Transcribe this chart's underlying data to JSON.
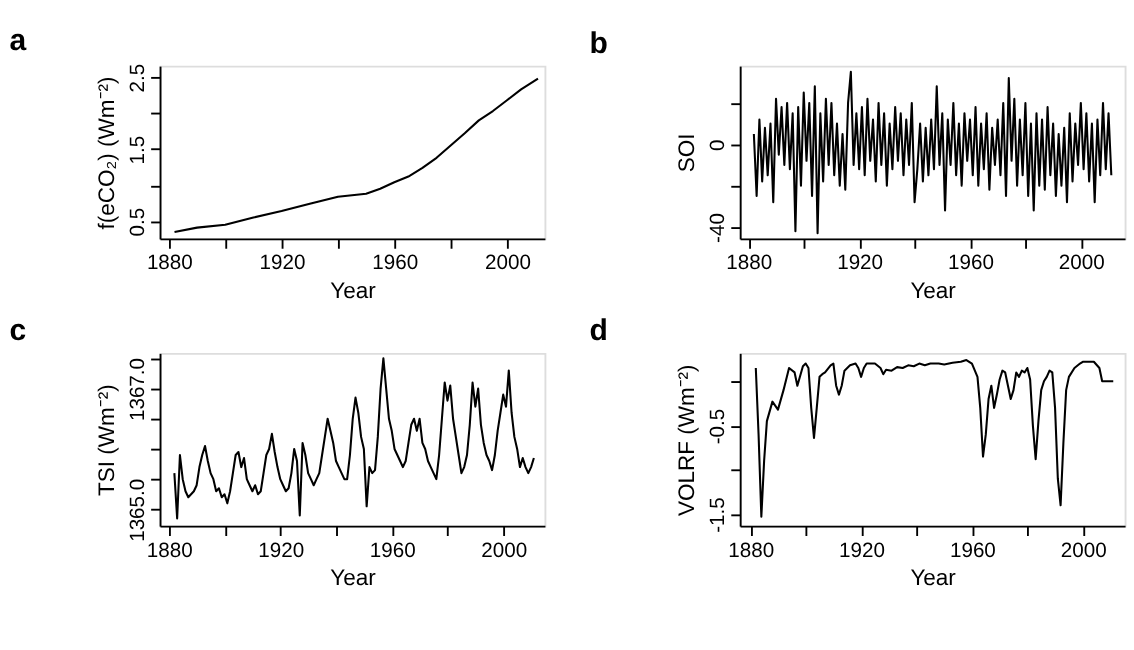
{
  "chart_data": [
    {
      "type": "line",
      "title": "a",
      "xlabel": "Year",
      "ylabel": "f(eCO₂) (Wm⁻²)",
      "xlim": [
        1876.7,
        2013.3
      ],
      "ylim": [
        0.26,
        2.66
      ],
      "xticks": [
        1880,
        {
          "value": 1900,
          "label": null
        },
        1920,
        {
          "value": 1940,
          "label": null
        },
        1960,
        {
          "value": 1980,
          "label": null
        },
        2000
      ],
      "yticks": [
        0.5,
        {
          "value": 1.0,
          "label": null
        },
        1.5,
        {
          "value": 2.0,
          "label": null
        },
        2.5
      ],
      "grid": false,
      "x": [
        1882,
        1890,
        1900,
        1910,
        1920,
        1930,
        1940,
        1950,
        1955,
        1960,
        1965,
        1970,
        1975,
        1980,
        1985,
        1990,
        1995,
        2000,
        2005,
        2011
      ],
      "series": [
        {
          "color": "#000000",
          "values": [
            0.35,
            0.41,
            0.45,
            0.55,
            0.64,
            0.74,
            0.84,
            0.88,
            0.95,
            1.04,
            1.12,
            1.24,
            1.38,
            1.55,
            1.72,
            1.9,
            2.03,
            2.18,
            2.33,
            2.48
          ]
        }
      ]
    },
    {
      "type": "line",
      "title": "b",
      "xlabel": "Year",
      "ylabel": "SOI",
      "xlim": [
        1876.9,
        2015.8
      ],
      "ylim": [
        -45.5,
        38
      ],
      "xticks": [
        1880,
        {
          "value": 1900,
          "label": null
        },
        1920,
        {
          "value": 1940,
          "label": null
        },
        1960,
        {
          "value": 1980,
          "label": null
        },
        2000
      ],
      "yticks": [
        -40,
        {
          "value": -20,
          "label": null
        },
        0,
        {
          "value": 20,
          "label": null
        }
      ],
      "grid": false,
      "x": [
        1882,
        1883,
        1884,
        1885,
        1886,
        1887,
        1888,
        1889,
        1890,
        1891,
        1892,
        1893,
        1894,
        1895,
        1896,
        1897,
        1898,
        1899,
        1900,
        1901,
        1902,
        1903,
        1904,
        1905,
        1906,
        1907,
        1908,
        1909,
        1910,
        1911,
        1912,
        1913,
        1914,
        1915,
        1916,
        1917,
        1918,
        1919,
        1920,
        1921,
        1922,
        1923,
        1924,
        1925,
        1926,
        1927,
        1928,
        1929,
        1930,
        1931,
        1932,
        1933,
        1934,
        1935,
        1936,
        1937,
        1938,
        1939,
        1940,
        1941,
        1942,
        1943,
        1944,
        1945,
        1946,
        1947,
        1948,
        1949,
        1950,
        1951,
        1952,
        1953,
        1954,
        1955,
        1956,
        1957,
        1958,
        1959,
        1960,
        1961,
        1962,
        1963,
        1964,
        1965,
        1966,
        1967,
        1968,
        1969,
        1970,
        1971,
        1972,
        1973,
        1974,
        1975,
        1976,
        1977,
        1978,
        1979,
        1980,
        1981,
        1982,
        1983,
        1984,
        1985,
        1986,
        1987,
        1988,
        1989,
        1990,
        1991,
        1992,
        1993,
        1994,
        1995,
        1996,
        1997,
        1998,
        1999,
        2000,
        2001,
        2002,
        2003,
        2004,
        2005,
        2006,
        2007,
        2008,
        2009,
        2010,
        2011
      ],
      "series": [
        {
          "color": "#000000",
          "values": [
            5,
            -25,
            12,
            -18,
            8,
            -15,
            10,
            -28,
            22,
            -5,
            18,
            -10,
            20,
            -12,
            15,
            -42,
            18,
            -20,
            25,
            -8,
            20,
            -25,
            28,
            -43,
            15,
            -18,
            22,
            -10,
            20,
            -15,
            10,
            -20,
            5,
            -22,
            20,
            35,
            -10,
            15,
            -12,
            18,
            -15,
            22,
            -8,
            12,
            -18,
            20,
            -10,
            15,
            -20,
            10,
            -12,
            18,
            -8,
            15,
            -15,
            12,
            -10,
            20,
            -28,
            -12,
            10,
            -18,
            8,
            -15,
            12,
            -12,
            28,
            -10,
            15,
            -32,
            12,
            -10,
            20,
            -15,
            10,
            -20,
            15,
            -8,
            12,
            -15,
            18,
            -20,
            10,
            -12,
            15,
            -22,
            8,
            -10,
            12,
            -15,
            20,
            -25,
            32,
            -8,
            22,
            -20,
            12,
            -15,
            20,
            -25,
            10,
            -32,
            15,
            -20,
            12,
            -22,
            18,
            -15,
            10,
            -25,
            5,
            -20,
            8,
            -28,
            15,
            -18,
            10,
            -10,
            20,
            -12,
            15,
            -18,
            10,
            -28,
            12,
            -15,
            20,
            -12,
            15,
            -15
          ]
        }
      ]
    },
    {
      "type": "line",
      "title": "c",
      "xlabel": "Year",
      "ylabel": "TSI (Wm⁻²)",
      "xlim": [
        1876.7,
        2014.8
      ],
      "ylim": [
        1364.73,
        1367.59
      ],
      "xticks": [
        1880,
        {
          "value": 1900,
          "label": null
        },
        1920,
        {
          "value": 1940,
          "label": null
        },
        1960,
        {
          "value": 1980,
          "label": null
        },
        2000
      ],
      "yticks": [
        {
          "value": 1365,
          "label": "1365.0"
        },
        {
          "value": 1365.5,
          "label": null
        },
        {
          "value": 1366,
          "label": null
        },
        {
          "value": 1366.5,
          "label": null
        },
        {
          "value": 1367,
          "label": "1367.0"
        },
        {
          "value": 1367.5,
          "label": null
        }
      ],
      "grid": false,
      "x": [
        1882,
        1883,
        1884,
        1885,
        1886,
        1887,
        1888,
        1889,
        1890,
        1891,
        1892,
        1893,
        1894,
        1895,
        1896,
        1897,
        1898,
        1899,
        1900,
        1901,
        1902,
        1903,
        1904,
        1905,
        1906,
        1907,
        1908,
        1909,
        1910,
        1911,
        1912,
        1913,
        1914,
        1915,
        1916,
        1917,
        1918,
        1919,
        1920,
        1921,
        1922,
        1923,
        1924,
        1925,
        1926,
        1927,
        1928,
        1929,
        1930,
        1931,
        1932,
        1933,
        1934,
        1935,
        1936,
        1937,
        1938,
        1939,
        1940,
        1941,
        1942,
        1943,
        1944,
        1945,
        1946,
        1947,
        1948,
        1949,
        1950,
        1951,
        1952,
        1953,
        1954,
        1955,
        1956,
        1957,
        1958,
        1959,
        1960,
        1961,
        1962,
        1963,
        1964,
        1965,
        1966,
        1967,
        1968,
        1969,
        1970,
        1971,
        1972,
        1973,
        1974,
        1975,
        1976,
        1977,
        1978,
        1979,
        1980,
        1981,
        1982,
        1983,
        1984,
        1985,
        1986,
        1987,
        1988,
        1989,
        1990,
        1991,
        1992,
        1993,
        1994,
        1995,
        1996,
        1997,
        1998,
        1999,
        2000,
        2001,
        2002,
        2003,
        2004,
        2005,
        2006,
        2007,
        2008,
        2009,
        2010,
        2011
      ],
      "series": [
        {
          "color": "#000000",
          "values": [
            1365.6,
            1364.85,
            1365.9,
            1365.5,
            1365.3,
            1365.2,
            1365.25,
            1365.3,
            1365.4,
            1365.7,
            1365.9,
            1366.05,
            1365.8,
            1365.6,
            1365.5,
            1365.3,
            1365.35,
            1365.2,
            1365.25,
            1365.1,
            1365.3,
            1365.6,
            1365.9,
            1365.95,
            1365.7,
            1365.85,
            1365.5,
            1365.4,
            1365.3,
            1365.4,
            1365.25,
            1365.3,
            1365.6,
            1365.9,
            1366.0,
            1366.25,
            1365.95,
            1365.7,
            1365.5,
            1365.4,
            1365.3,
            1365.35,
            1365.6,
            1366.0,
            1365.8,
            1364.9,
            1366.1,
            1365.9,
            1365.6,
            1365.5,
            1365.4,
            1365.5,
            1365.6,
            1365.9,
            1366.2,
            1366.5,
            1366.3,
            1366.1,
            1365.8,
            1365.7,
            1365.6,
            1365.5,
            1365.5,
            1365.9,
            1366.5,
            1366.85,
            1366.6,
            1366.2,
            1366.0,
            1365.05,
            1365.7,
            1365.6,
            1365.65,
            1366.2,
            1367.0,
            1367.5,
            1367.0,
            1366.5,
            1366.3,
            1366.0,
            1365.9,
            1365.8,
            1365.7,
            1365.8,
            1366.1,
            1366.4,
            1366.5,
            1366.3,
            1366.5,
            1366.1,
            1366.0,
            1365.8,
            1365.7,
            1365.6,
            1365.5,
            1365.9,
            1366.5,
            1367.1,
            1366.8,
            1367.05,
            1366.5,
            1366.2,
            1365.9,
            1365.6,
            1365.7,
            1365.9,
            1366.4,
            1367.1,
            1366.7,
            1367.0,
            1366.4,
            1366.1,
            1365.9,
            1365.8,
            1365.65,
            1365.9,
            1366.3,
            1366.6,
            1366.9,
            1366.7,
            1367.3,
            1366.6,
            1366.2,
            1366.0,
            1365.7,
            1365.85,
            1365.7,
            1365.6,
            1365.7,
            1365.85
          ]
        }
      ]
    },
    {
      "type": "line",
      "title": "d",
      "xlabel": "Year",
      "ylabel": "VOLRF (Wm⁻²)",
      "xlim": [
        1876.2,
        2015.1
      ],
      "ylim": [
        -1.63,
        0.32
      ],
      "xticks": [
        1880,
        {
          "value": 1900,
          "label": null
        },
        1920,
        {
          "value": 1940,
          "label": null
        },
        1960,
        {
          "value": 1980,
          "label": null
        },
        2000
      ],
      "yticks": [
        -1.5,
        {
          "value": -1.0,
          "label": null
        },
        -0.5,
        {
          "value": 0,
          "label": null
        }
      ],
      "grid": false,
      "x": [
        1882,
        1883,
        1884,
        1885,
        1886,
        1888,
        1890,
        1892,
        1894,
        1896,
        1897,
        1899,
        1900,
        1901,
        1902,
        1903,
        1904,
        1905,
        1906,
        1907,
        1909,
        1910,
        1911,
        1912,
        1913,
        1914,
        1916,
        1918,
        1919,
        1920,
        1921,
        1922,
        1925,
        1927,
        1928,
        1929,
        1931,
        1933,
        1935,
        1937,
        1939,
        1941,
        1943,
        1945,
        1948,
        1950,
        1953,
        1956,
        1958,
        1960,
        1962,
        1963,
        1964,
        1965,
        1966,
        1967,
        1968,
        1969,
        1970,
        1971,
        1972,
        1973,
        1974,
        1975,
        1976,
        1977,
        1978,
        1979,
        1980,
        1981,
        1982,
        1983,
        1984,
        1985,
        1986,
        1987,
        1988,
        1989,
        1990,
        1991,
        1992,
        1993,
        1994,
        1995,
        1997,
        1999,
        2000,
        2002,
        2004,
        2006,
        2007,
        2008,
        2011
      ],
      "series": [
        {
          "color": "#000000",
          "values": [
            0.15,
            -0.6,
            -1.53,
            -0.9,
            -0.45,
            -0.23,
            -0.32,
            -0.1,
            0.15,
            0.1,
            -0.05,
            0.17,
            0.2,
            0.15,
            -0.3,
            -0.64,
            -0.3,
            0.05,
            0.08,
            0.1,
            0.18,
            0.2,
            -0.05,
            -0.15,
            -0.05,
            0.12,
            0.18,
            0.2,
            0.15,
            0.05,
            0.15,
            0.2,
            0.2,
            0.15,
            0.08,
            0.13,
            0.12,
            0.16,
            0.15,
            0.18,
            0.17,
            0.2,
            0.18,
            0.2,
            0.2,
            0.19,
            0.21,
            0.22,
            0.24,
            0.2,
            0.05,
            -0.3,
            -0.85,
            -0.6,
            -0.2,
            -0.05,
            -0.3,
            -0.15,
            0.02,
            0.12,
            0.1,
            -0.05,
            -0.2,
            -0.1,
            0.1,
            0.05,
            0.12,
            0.1,
            0.15,
            0.02,
            -0.5,
            -0.88,
            -0.45,
            -0.1,
            0.0,
            0.05,
            0.12,
            0.1,
            -0.3,
            -1.1,
            -1.4,
            -0.7,
            -0.1,
            0.05,
            0.15,
            0.2,
            0.22,
            0.22,
            0.22,
            0.15,
            0.0,
            0.0,
            0.0
          ]
        }
      ]
    }
  ]
}
